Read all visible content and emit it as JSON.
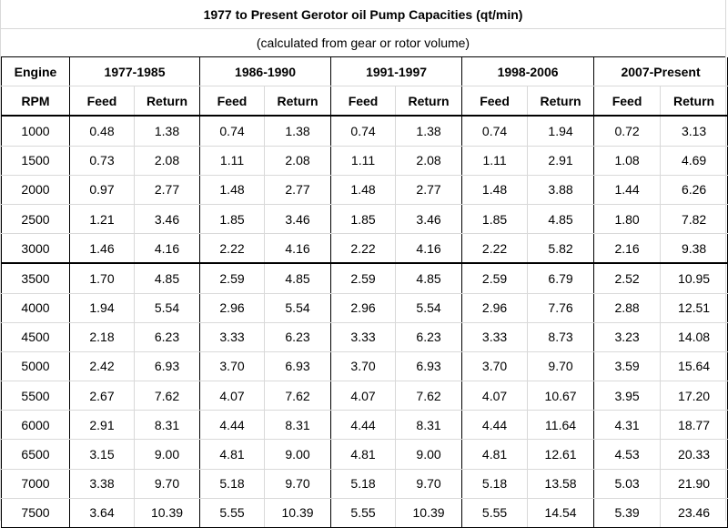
{
  "title": "1977 to Present Gerotor oil Pump Capacities (qt/min)",
  "subtitle": "(calculated from gear or rotor volume)",
  "header": {
    "engine_label": "Engine",
    "rpm_label": "RPM",
    "periods": [
      "1977-1985",
      "1986-1990",
      "1991-1997",
      "1998-2006",
      "2007-Present"
    ],
    "feed_label": "Feed",
    "return_label": "Return"
  },
  "rows": [
    {
      "rpm": "1000",
      "values": [
        "0.48",
        "1.38",
        "0.74",
        "1.38",
        "0.74",
        "1.38",
        "0.74",
        "1.94",
        "0.72",
        "3.13"
      ]
    },
    {
      "rpm": "1500",
      "values": [
        "0.73",
        "2.08",
        "1.11",
        "2.08",
        "1.11",
        "2.08",
        "1.11",
        "2.91",
        "1.08",
        "4.69"
      ]
    },
    {
      "rpm": "2000",
      "values": [
        "0.97",
        "2.77",
        "1.48",
        "2.77",
        "1.48",
        "2.77",
        "1.48",
        "3.88",
        "1.44",
        "6.26"
      ]
    },
    {
      "rpm": "2500",
      "values": [
        "1.21",
        "3.46",
        "1.85",
        "3.46",
        "1.85",
        "3.46",
        "1.85",
        "4.85",
        "1.80",
        "7.82"
      ]
    },
    {
      "rpm": "3000",
      "values": [
        "1.46",
        "4.16",
        "2.22",
        "4.16",
        "2.22",
        "4.16",
        "2.22",
        "5.82",
        "2.16",
        "9.38"
      ]
    },
    {
      "rpm": "3500",
      "values": [
        "1.70",
        "4.85",
        "2.59",
        "4.85",
        "2.59",
        "4.85",
        "2.59",
        "6.79",
        "2.52",
        "10.95"
      ]
    },
    {
      "rpm": "4000",
      "values": [
        "1.94",
        "5.54",
        "2.96",
        "5.54",
        "2.96",
        "5.54",
        "2.96",
        "7.76",
        "2.88",
        "12.51"
      ]
    },
    {
      "rpm": "4500",
      "values": [
        "2.18",
        "6.23",
        "3.33",
        "6.23",
        "3.33",
        "6.23",
        "3.33",
        "8.73",
        "3.23",
        "14.08"
      ]
    },
    {
      "rpm": "5000",
      "values": [
        "2.42",
        "6.93",
        "3.70",
        "6.93",
        "3.70",
        "6.93",
        "3.70",
        "9.70",
        "3.59",
        "15.64"
      ]
    },
    {
      "rpm": "5500",
      "values": [
        "2.67",
        "7.62",
        "4.07",
        "7.62",
        "4.07",
        "7.62",
        "4.07",
        "10.67",
        "3.95",
        "17.20"
      ]
    },
    {
      "rpm": "6000",
      "values": [
        "2.91",
        "8.31",
        "4.44",
        "8.31",
        "4.44",
        "8.31",
        "4.44",
        "11.64",
        "4.31",
        "18.77"
      ]
    },
    {
      "rpm": "6500",
      "values": [
        "3.15",
        "9.00",
        "4.81",
        "9.00",
        "4.81",
        "9.00",
        "4.81",
        "12.61",
        "4.53",
        "20.33"
      ]
    },
    {
      "rpm": "7000",
      "values": [
        "3.38",
        "9.70",
        "5.18",
        "9.70",
        "5.18",
        "9.70",
        "5.18",
        "13.58",
        "5.03",
        "21.90"
      ]
    },
    {
      "rpm": "7500",
      "values": [
        "3.64",
        "10.39",
        "5.55",
        "10.39",
        "5.55",
        "10.39",
        "5.55",
        "14.54",
        "5.39",
        "23.46"
      ]
    }
  ]
}
